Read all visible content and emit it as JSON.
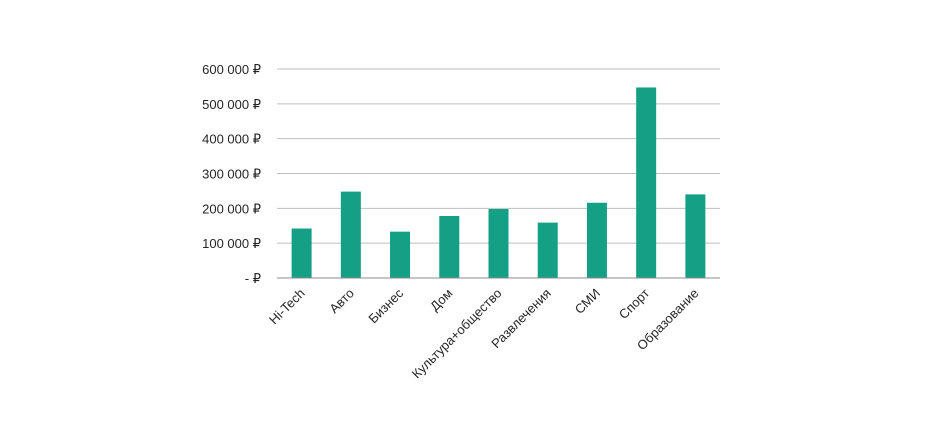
{
  "chart_data": {
    "type": "bar",
    "title": "",
    "xlabel": "",
    "ylabel": "",
    "categories": [
      "Hi-Tech",
      "Авто",
      "Бизнес",
      "Дом",
      "Культура+общество",
      "Развлечения",
      "СМИ",
      "Спорт",
      "Образование"
    ],
    "values": [
      142000,
      248000,
      133000,
      178000,
      198000,
      159000,
      216000,
      547000,
      240000
    ],
    "ylim": [
      0,
      600000
    ],
    "yticks": [
      0,
      100000,
      200000,
      300000,
      400000,
      500000,
      600000
    ],
    "ytick_labels": [
      "-  ₽",
      "100 000 ₽",
      "200 000 ₽",
      "300 000 ₽",
      "400 000 ₽",
      "500 000 ₽",
      "600 000 ₽"
    ],
    "grid": true,
    "legend": "none",
    "bar_color": "#14a085",
    "grid_color": "#bfbfbf",
    "axis_color": "#8c8c8c"
  }
}
